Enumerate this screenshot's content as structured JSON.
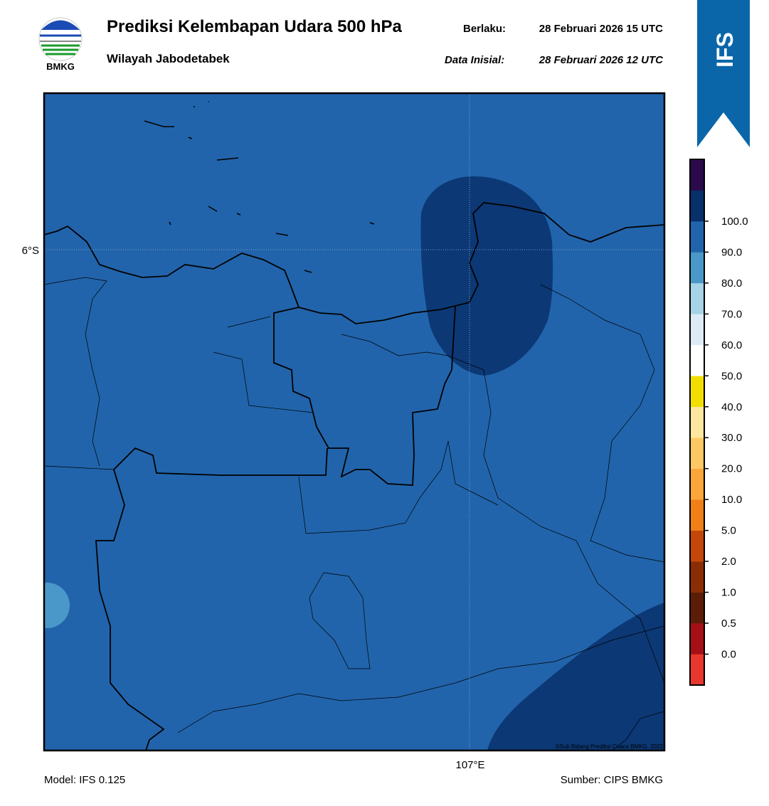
{
  "header": {
    "logo_text": "BMKG",
    "title": "Prediksi Kelembapan Udara 500 hPa",
    "region": "Wilayah Jabodetabek",
    "valid_label": "Berlaku:",
    "valid": "28 Februari 2026 15 UTC",
    "init_label": "Data Inisial:",
    "init": "28 Februari 2026 12 UTC",
    "badge": "IFS"
  },
  "map": {
    "lat_label": "6°S",
    "lon_label": "107°E",
    "copyright": "©Sub Bidang Prediksi Cuaca BMKG, 2022"
  },
  "colorbar": {
    "labels": [
      "0.0",
      "0.5",
      "1.0",
      "2.0",
      "5.0",
      "10.0",
      "20.0",
      "30.0",
      "40.0",
      "50.0",
      "60.0",
      "70.0",
      "80.0",
      "90.0",
      "100.0"
    ],
    "colors": [
      "#e8372c",
      "#a50f15",
      "#5c1d06",
      "#8a2d04",
      "#c4470a",
      "#f07f17",
      "#fba53a",
      "#fdc863",
      "#fde7a0",
      "#f2dd00",
      "#ffffff",
      "#deebf7",
      "#a6d3e6",
      "#4a98c9",
      "#2164ab",
      "#08306b",
      "#2a0a4a"
    ]
  },
  "footer": {
    "model": "Model: IFS 0.125",
    "source": "Sumber: CIPS BMKG"
  }
}
